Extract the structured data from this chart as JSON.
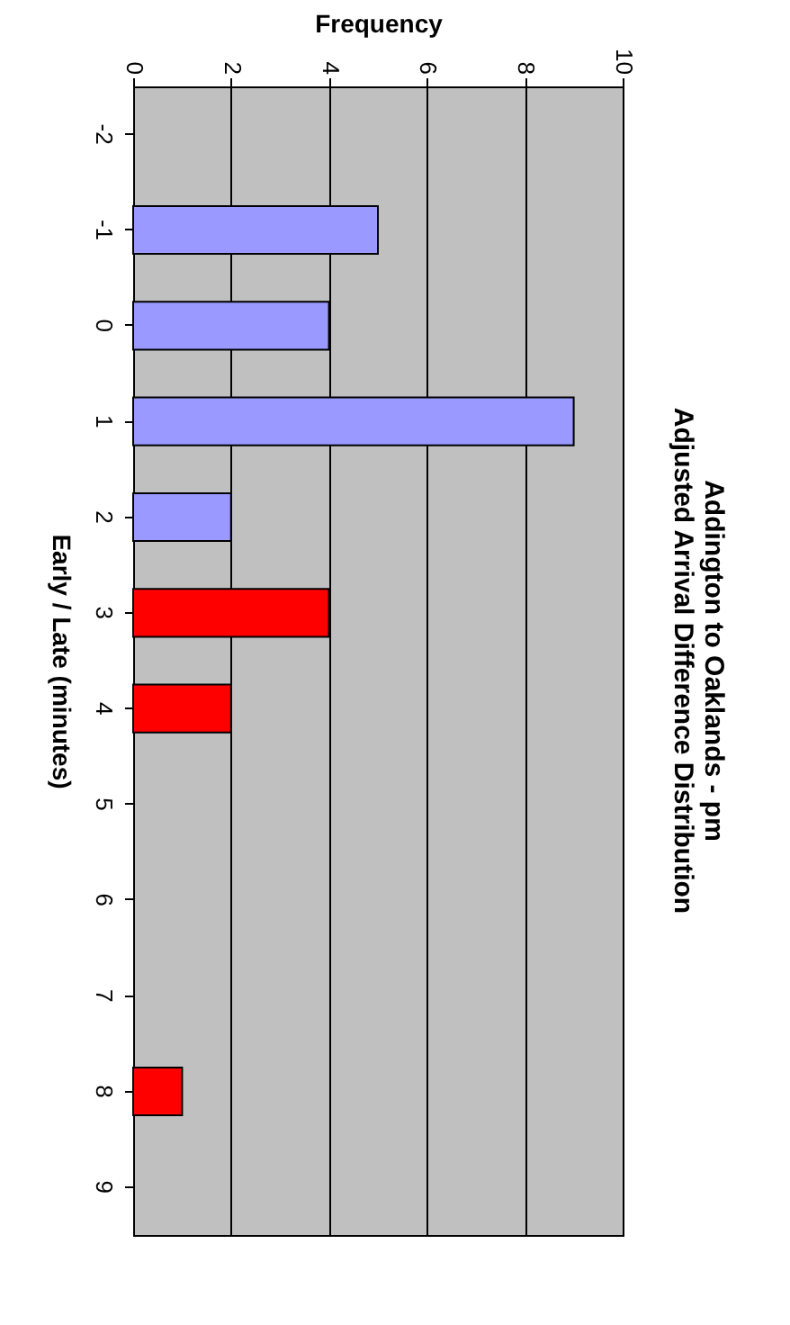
{
  "chart_data": {
    "type": "bar",
    "orientation": "horizontal",
    "title": "Addington to Oaklands - pm",
    "subtitle": "Adjusted Arrival Difference Distribution",
    "ylabel": "Early / Late (minutes)",
    "xlabel": "Frequency",
    "categories": [
      "-2",
      "-1",
      "0",
      "1",
      "2",
      "3",
      "4",
      "5",
      "6",
      "7",
      "8",
      "9"
    ],
    "values": [
      0,
      5,
      4,
      9,
      2,
      4,
      2,
      0,
      0,
      0,
      1,
      0
    ],
    "colors": [
      "#9999ff",
      "#9999ff",
      "#9999ff",
      "#9999ff",
      "#9999ff",
      "#ff0000",
      "#ff0000",
      "#ff0000",
      "#ff0000",
      "#ff0000",
      "#ff0000",
      "#ff0000"
    ],
    "xlim": [
      0,
      10
    ],
    "xticks": [
      0,
      2,
      4,
      6,
      8,
      10
    ],
    "grid": "x",
    "legend": false
  }
}
